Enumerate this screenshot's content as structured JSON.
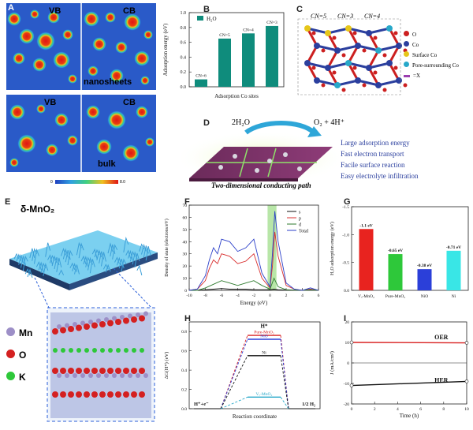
{
  "panel_a": {
    "label": "A",
    "tl": "VB",
    "tr": "CB",
    "bl": "VB",
    "br": "CB",
    "mid": "nanosheets",
    "bottom": "bulk",
    "scale_min": "0",
    "scale_max": "8.0"
  },
  "panel_b": {
    "label": "B",
    "chart_data": {
      "type": "bar",
      "categories": [
        "CN=6",
        "CN=5",
        "CN=4",
        "CN=3"
      ],
      "values": [
        0.1,
        0.65,
        0.72,
        0.82
      ],
      "series": [
        {
          "name": "H₂O",
          "values": [
            0.1,
            0.65,
            0.72,
            0.82
          ]
        }
      ],
      "xlabel": "Adsorption Co sites",
      "ylabel": "Adsorption energy (eV)",
      "ylim": [
        0.0,
        1.0
      ],
      "yticks": [
        "0.0",
        "0.2",
        "0.4",
        "0.6",
        "0.8",
        "1.0"
      ]
    }
  },
  "panel_c": {
    "label": "C",
    "top_labels": [
      "CN=5",
      "CN=3",
      "CN=4"
    ],
    "legend": [
      "O",
      "Co",
      "Surface Co",
      "Pore-surrounding Co",
      "=X"
    ],
    "colors": {
      "o": "#cc1f1f",
      "co": "#2b3f9e",
      "surface_co": "#e6c619",
      "pore_co": "#27a8c9"
    }
  },
  "panel_d": {
    "label": "D",
    "reaction_left": "2H₂O",
    "reaction_right": "O₂ + 4H⁺",
    "features": [
      "Large adsorption energy",
      "Fast electron transport",
      "Facile surface reaction",
      "Easy electrolyte infiltration"
    ],
    "caption": "Two-dimensional conducting path"
  },
  "panel_e": {
    "label": "E",
    "material": "δ-MnO₂",
    "legend": [
      "Mn",
      "O",
      "K"
    ],
    "colors": {
      "mn": "#9d8fc7",
      "o": "#d42020",
      "k": "#2ec83a"
    }
  },
  "panel_f": {
    "label": "F",
    "chart_data": {
      "type": "line",
      "xlabel": "Energy (eV)",
      "ylabel": "Density of state (electrons/eV)",
      "xlim": [
        -10,
        6
      ],
      "ylim": [
        0,
        70
      ],
      "xticks": [
        "-10",
        "-8",
        "-6",
        "-4",
        "-2",
        "0",
        "2",
        "4",
        "6"
      ],
      "yticks": [
        "0",
        "10",
        "20",
        "30",
        "40",
        "50",
        "60",
        "70"
      ],
      "series": [
        {
          "name": "s",
          "color": "#111111",
          "x": [
            -10,
            -9,
            -8,
            -7,
            -6,
            -5,
            -4,
            -3,
            -2,
            -1,
            0,
            0.5,
            1,
            2,
            3,
            4,
            5,
            6
          ],
          "y": [
            0,
            0,
            0.5,
            1,
            1.5,
            1,
            1,
            1,
            0.5,
            0.5,
            0.5,
            1,
            0.5,
            0.2,
            0.1,
            0.1,
            0.5,
            0
          ]
        },
        {
          "name": "p",
          "color": "#d93030",
          "x": [
            -10,
            -9,
            -8,
            -7.5,
            -7,
            -6.5,
            -6,
            -5,
            -4,
            -3,
            -2,
            -1.5,
            -1,
            0,
            0.3,
            0.6,
            1,
            2,
            3,
            4,
            5,
            6
          ],
          "y": [
            0,
            1,
            8,
            18,
            25,
            22,
            30,
            28,
            22,
            24,
            30,
            20,
            10,
            2,
            20,
            48,
            28,
            4,
            1,
            0,
            1,
            0
          ]
        },
        {
          "name": "d",
          "color": "#2d7a2d",
          "x": [
            -10,
            -9,
            -8,
            -7,
            -6,
            -5,
            -4,
            -3,
            -2,
            -1,
            0,
            0.5,
            1,
            2,
            3,
            4,
            5,
            6
          ],
          "y": [
            0,
            0,
            2,
            5,
            8,
            6,
            4,
            6,
            8,
            4,
            1,
            10,
            3,
            0.5,
            0.2,
            0,
            0.5,
            0
          ]
        },
        {
          "name": "Total",
          "color": "#2b3fc9",
          "x": [
            -10,
            -9,
            -8,
            -7.5,
            -7,
            -6.5,
            -6,
            -5,
            -4,
            -3,
            -2,
            -1.5,
            -1,
            0,
            0.3,
            0.6,
            1,
            2,
            3,
            4,
            5,
            6
          ],
          "y": [
            0,
            1,
            12,
            25,
            35,
            30,
            42,
            40,
            32,
            35,
            42,
            28,
            14,
            3,
            30,
            65,
            40,
            6,
            1,
            0,
            2,
            0
          ]
        }
      ],
      "shaded_band": [
        -0.3,
        0.8
      ]
    }
  },
  "panel_g": {
    "label": "G",
    "chart_data": {
      "type": "bar",
      "categories": [
        "Vₒ-MnO₂",
        "Pure-MnO₂",
        "NiO",
        "Ni"
      ],
      "values": [
        -1.1,
        -0.65,
        -0.38,
        -0.71
      ],
      "data_labels": [
        "-1.1 eV",
        "-0.65 eV",
        "-0.38 eV",
        "-0.71 eV"
      ],
      "colors": [
        "#e8231f",
        "#2ec83a",
        "#2b3fd9",
        "#39e6e6"
      ],
      "ylabel": "H₂O adsorption energy (eV)",
      "ylim": [
        0.0,
        -1.5
      ],
      "yticks": [
        "0.0",
        "-0.5",
        "-1.0",
        "-1.5"
      ]
    }
  },
  "panel_h": {
    "label": "H",
    "chart_data": {
      "type": "line",
      "xlabel": "Reaction coordinate",
      "ylabel": "ΔG(H*) (eV)",
      "ylim": [
        0.0,
        0.9
      ],
      "yticks": [
        "0.0",
        "0.2",
        "0.4",
        "0.6",
        "0.8"
      ],
      "left_label": "H⁺+e⁻",
      "right_label": "1/2 H₂",
      "top_label": "H*",
      "series": [
        {
          "name": "Pure-MnO₂",
          "color": "#d92020",
          "value": 0.76
        },
        {
          "name": "NiO",
          "color": "#2b3fd9",
          "value": 0.72
        },
        {
          "name": "Ni",
          "color": "#111111",
          "value": 0.55
        },
        {
          "name": "Vₒ-MnO₂",
          "color": "#27a8c9",
          "value": 0.12
        }
      ]
    }
  },
  "panel_i": {
    "label": "I",
    "chart_data": {
      "type": "line",
      "xlabel": "Time (h)",
      "ylabel": "J (mA/cm²)",
      "xlim": [
        0,
        10
      ],
      "ylim": [
        -20,
        20
      ],
      "xticks": [
        "0",
        "2",
        "4",
        "6",
        "8",
        "10"
      ],
      "yticks": [
        "-20",
        "-10",
        "0",
        "10",
        "20"
      ],
      "series": [
        {
          "name": "OER",
          "color": "#d92020",
          "x": [
            0,
            10
          ],
          "y": [
            10,
            9.8
          ]
        },
        {
          "name": "HER",
          "color": "#111111",
          "x": [
            0,
            10
          ],
          "y": [
            -11,
            -9
          ]
        }
      ]
    }
  }
}
